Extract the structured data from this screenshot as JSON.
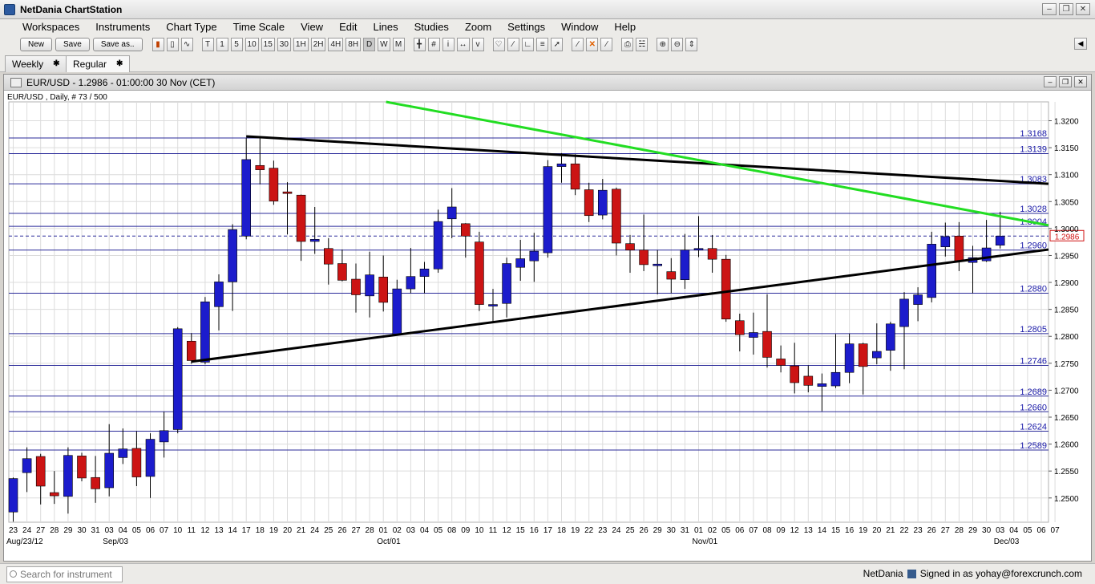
{
  "app": {
    "title": "NetDania ChartStation"
  },
  "menu": [
    "Workspaces",
    "Instruments",
    "Chart Type",
    "Time Scale",
    "View",
    "Edit",
    "Lines",
    "Studies",
    "Zoom",
    "Settings",
    "Window",
    "Help"
  ],
  "toolbar": {
    "new_label": "New",
    "save_label": "Save",
    "saveas_label": "Save as..",
    "chart_type_icons": [
      "bar-chart-icon",
      "candlestick-icon",
      "line-chart-icon"
    ],
    "timeframes": [
      "T",
      "1",
      "5",
      "10",
      "15",
      "30",
      "1H",
      "2H",
      "4H",
      "8H",
      "D",
      "W",
      "M"
    ],
    "active_timeframe": "D"
  },
  "tabs": [
    {
      "label": "Weekly",
      "close": "✱"
    },
    {
      "label": "Regular",
      "close": "✱"
    }
  ],
  "chart_window": {
    "title": "EUR/USD - 1.2986 - 01:00:00  30 Nov (CET)",
    "info": "EUR/USD , Daily, # 73 / 500"
  },
  "chart_data": {
    "type": "candlestick",
    "instrument": "EUR/USD",
    "timeframe": "Daily",
    "ylim": [
      1.2455,
      1.3235
    ],
    "y_ticks": [
      1.25,
      1.255,
      1.26,
      1.265,
      1.27,
      1.275,
      1.28,
      1.285,
      1.29,
      1.295,
      1.3,
      1.305,
      1.31,
      1.315,
      1.32
    ],
    "day_labels": [
      "23",
      "24",
      "27",
      "28",
      "29",
      "30",
      "31",
      "03",
      "04",
      "05",
      "06",
      "07",
      "10",
      "11",
      "12",
      "13",
      "14",
      "17",
      "18",
      "19",
      "20",
      "21",
      "24",
      "25",
      "26",
      "27",
      "28",
      "01",
      "02",
      "03",
      "04",
      "05",
      "08",
      "09",
      "10",
      "11",
      "12",
      "15",
      "16",
      "17",
      "18",
      "19",
      "22",
      "23",
      "24",
      "25",
      "26",
      "29",
      "30",
      "31",
      "01",
      "02",
      "05",
      "06",
      "07",
      "08",
      "09",
      "12",
      "13",
      "14",
      "15",
      "16",
      "19",
      "20",
      "21",
      "22",
      "23",
      "26",
      "27",
      "28",
      "29",
      "30",
      "03",
      "04",
      "05",
      "06",
      "07"
    ],
    "month_labels": [
      {
        "label": "Aug/23/12",
        "index": 0
      },
      {
        "label": "Sep/03",
        "index": 7
      },
      {
        "label": "Oct/01",
        "index": 27
      },
      {
        "label": "Nov/01",
        "index": 50
      },
      {
        "label": "Dec/03",
        "index": 72
      }
    ],
    "candles": [
      {
        "o": 1.2474,
        "h": 1.2538,
        "l": 1.2456,
        "c": 1.2536
      },
      {
        "o": 1.2547,
        "h": 1.2594,
        "l": 1.2511,
        "c": 1.2573
      },
      {
        "o": 1.2577,
        "h": 1.2582,
        "l": 1.2488,
        "c": 1.2522
      },
      {
        "o": 1.251,
        "h": 1.255,
        "l": 1.2489,
        "c": 1.2504
      },
      {
        "o": 1.2503,
        "h": 1.2594,
        "l": 1.2471,
        "c": 1.2579
      },
      {
        "o": 1.2578,
        "h": 1.2584,
        "l": 1.2531,
        "c": 1.2537
      },
      {
        "o": 1.2538,
        "h": 1.2578,
        "l": 1.2491,
        "c": 1.2517
      },
      {
        "o": 1.2519,
        "h": 1.2637,
        "l": 1.2503,
        "c": 1.2583
      },
      {
        "o": 1.2575,
        "h": 1.2629,
        "l": 1.2563,
        "c": 1.2591
      },
      {
        "o": 1.2592,
        "h": 1.2624,
        "l": 1.2522,
        "c": 1.2539
      },
      {
        "o": 1.254,
        "h": 1.262,
        "l": 1.25,
        "c": 1.2609
      },
      {
        "o": 1.2604,
        "h": 1.266,
        "l": 1.2575,
        "c": 1.2625
      },
      {
        "o": 1.2627,
        "h": 1.2817,
        "l": 1.262,
        "c": 1.2814
      },
      {
        "o": 1.2791,
        "h": 1.2806,
        "l": 1.2749,
        "c": 1.2755
      },
      {
        "o": 1.2752,
        "h": 1.2873,
        "l": 1.2748,
        "c": 1.2864
      },
      {
        "o": 1.2855,
        "h": 1.2915,
        "l": 1.2811,
        "c": 1.2901
      },
      {
        "o": 1.2901,
        "h": 1.3008,
        "l": 1.2847,
        "c": 1.2998
      },
      {
        "o": 1.2986,
        "h": 1.3168,
        "l": 1.298,
        "c": 1.3128
      },
      {
        "o": 1.3117,
        "h": 1.317,
        "l": 1.3082,
        "c": 1.3109
      },
      {
        "o": 1.3112,
        "h": 1.3126,
        "l": 1.3044,
        "c": 1.3051
      },
      {
        "o": 1.3068,
        "h": 1.3086,
        "l": 1.2989,
        "c": 1.3066
      },
      {
        "o": 1.3062,
        "h": 1.3063,
        "l": 1.294,
        "c": 1.2976
      },
      {
        "o": 1.2976,
        "h": 1.304,
        "l": 1.2953,
        "c": 1.298
      },
      {
        "o": 1.2963,
        "h": 1.2982,
        "l": 1.2896,
        "c": 1.2934
      },
      {
        "o": 1.2935,
        "h": 1.2961,
        "l": 1.2902,
        "c": 1.2904
      },
      {
        "o": 1.2906,
        "h": 1.2935,
        "l": 1.2844,
        "c": 1.2877
      },
      {
        "o": 1.2875,
        "h": 1.2957,
        "l": 1.2835,
        "c": 1.2914
      },
      {
        "o": 1.291,
        "h": 1.295,
        "l": 1.2846,
        "c": 1.2863
      },
      {
        "o": 1.2804,
        "h": 1.2905,
        "l": 1.2803,
        "c": 1.2888
      },
      {
        "o": 1.2888,
        "h": 1.2964,
        "l": 1.288,
        "c": 1.2911
      },
      {
        "o": 1.2911,
        "h": 1.2938,
        "l": 1.288,
        "c": 1.2925
      },
      {
        "o": 1.2925,
        "h": 1.3035,
        "l": 1.2918,
        "c": 1.3013
      },
      {
        "o": 1.3018,
        "h": 1.3075,
        "l": 1.2982,
        "c": 1.304
      },
      {
        "o": 1.3009,
        "h": 1.301,
        "l": 1.2946,
        "c": 1.2986
      },
      {
        "o": 1.2975,
        "h": 1.2994,
        "l": 1.2847,
        "c": 1.2859
      },
      {
        "o": 1.2859,
        "h": 1.2888,
        "l": 1.2827,
        "c": 1.2859
      },
      {
        "o": 1.2861,
        "h": 1.2946,
        "l": 1.2835,
        "c": 1.2935
      },
      {
        "o": 1.2928,
        "h": 1.2979,
        "l": 1.2903,
        "c": 1.2944
      },
      {
        "o": 1.294,
        "h": 1.2992,
        "l": 1.2901,
        "c": 1.2958
      },
      {
        "o": 1.2955,
        "h": 1.3127,
        "l": 1.2946,
        "c": 1.3115
      },
      {
        "o": 1.3115,
        "h": 1.314,
        "l": 1.3085,
        "c": 1.312
      },
      {
        "o": 1.312,
        "h": 1.3138,
        "l": 1.3062,
        "c": 1.3073
      },
      {
        "o": 1.3072,
        "h": 1.3085,
        "l": 1.3012,
        "c": 1.3024
      },
      {
        "o": 1.3025,
        "h": 1.3092,
        "l": 1.3017,
        "c": 1.3071
      },
      {
        "o": 1.3073,
        "h": 1.3076,
        "l": 1.295,
        "c": 1.2973
      },
      {
        "o": 1.2972,
        "h": 1.2988,
        "l": 1.2918,
        "c": 1.296
      },
      {
        "o": 1.296,
        "h": 1.3026,
        "l": 1.2921,
        "c": 1.2933
      },
      {
        "o": 1.2934,
        "h": 1.296,
        "l": 1.2878,
        "c": 1.2934
      },
      {
        "o": 1.292,
        "h": 1.2945,
        "l": 1.288,
        "c": 1.2906
      },
      {
        "o": 1.2905,
        "h": 1.299,
        "l": 1.2888,
        "c": 1.296
      },
      {
        "o": 1.296,
        "h": 1.3023,
        "l": 1.2947,
        "c": 1.2963
      },
      {
        "o": 1.2963,
        "h": 1.2988,
        "l": 1.2918,
        "c": 1.2943
      },
      {
        "o": 1.2943,
        "h": 1.2951,
        "l": 1.2827,
        "c": 1.2832
      },
      {
        "o": 1.2829,
        "h": 1.2842,
        "l": 1.2772,
        "c": 1.2803
      },
      {
        "o": 1.2798,
        "h": 1.2844,
        "l": 1.2766,
        "c": 1.2807
      },
      {
        "o": 1.2809,
        "h": 1.2878,
        "l": 1.2742,
        "c": 1.2761
      },
      {
        "o": 1.2758,
        "h": 1.2783,
        "l": 1.2733,
        "c": 1.2746
      },
      {
        "o": 1.2745,
        "h": 1.2788,
        "l": 1.2694,
        "c": 1.2714
      },
      {
        "o": 1.2726,
        "h": 1.2746,
        "l": 1.2696,
        "c": 1.2709
      },
      {
        "o": 1.2707,
        "h": 1.2731,
        "l": 1.2661,
        "c": 1.2712
      },
      {
        "o": 1.2708,
        "h": 1.2804,
        "l": 1.2704,
        "c": 1.2733
      },
      {
        "o": 1.2733,
        "h": 1.2805,
        "l": 1.2713,
        "c": 1.2786
      },
      {
        "o": 1.2786,
        "h": 1.2788,
        "l": 1.2692,
        "c": 1.2744
      },
      {
        "o": 1.276,
        "h": 1.2824,
        "l": 1.2748,
        "c": 1.2772
      },
      {
        "o": 1.2774,
        "h": 1.2827,
        "l": 1.2736,
        "c": 1.2823
      },
      {
        "o": 1.2818,
        "h": 1.2882,
        "l": 1.2739,
        "c": 1.2869
      },
      {
        "o": 1.2859,
        "h": 1.2891,
        "l": 1.2828,
        "c": 1.2877
      },
      {
        "o": 1.2872,
        "h": 1.2994,
        "l": 1.2863,
        "c": 1.2971
      },
      {
        "o": 1.2966,
        "h": 1.3011,
        "l": 1.2948,
        "c": 1.2985
      },
      {
        "o": 1.2986,
        "h": 1.3012,
        "l": 1.2921,
        "c": 1.2939
      },
      {
        "o": 1.2937,
        "h": 1.2968,
        "l": 1.288,
        "c": 1.2946
      },
      {
        "o": 1.294,
        "h": 1.3016,
        "l": 1.2938,
        "c": 1.2964
      },
      {
        "o": 1.2969,
        "h": 1.3031,
        "l": 1.2963,
        "c": 1.2986
      }
    ],
    "horizontal_levels": [
      1.3168,
      1.3139,
      1.3083,
      1.3028,
      1.3004,
      1.296,
      1.288,
      1.2805,
      1.2746,
      1.2689,
      1.266,
      1.2624,
      1.2589
    ],
    "current_price": 1.2986,
    "trendlines": [
      {
        "color": "#000000",
        "from": {
          "index": 17,
          "price": 1.3171
        },
        "to": {
          "index": 76.5,
          "price": 1.3083
        }
      },
      {
        "color": "#000000",
        "from": {
          "index": 13,
          "price": 1.2753
        },
        "to": {
          "index": 76.5,
          "price": 1.2961
        }
      },
      {
        "color": "#22dd22",
        "from": {
          "index": 27.2,
          "price": 1.3235
        },
        "to": {
          "index": 76.5,
          "price": 1.3006
        }
      }
    ],
    "colors": {
      "up": "#1c1ccc",
      "down": "#cc1414",
      "level": "#2b2b9a",
      "current": "#d01010"
    }
  },
  "status": {
    "search_placeholder": "Search for instrument",
    "brand": "NetDania",
    "signed_in": "Signed in as yohay@forexcrunch.com"
  }
}
